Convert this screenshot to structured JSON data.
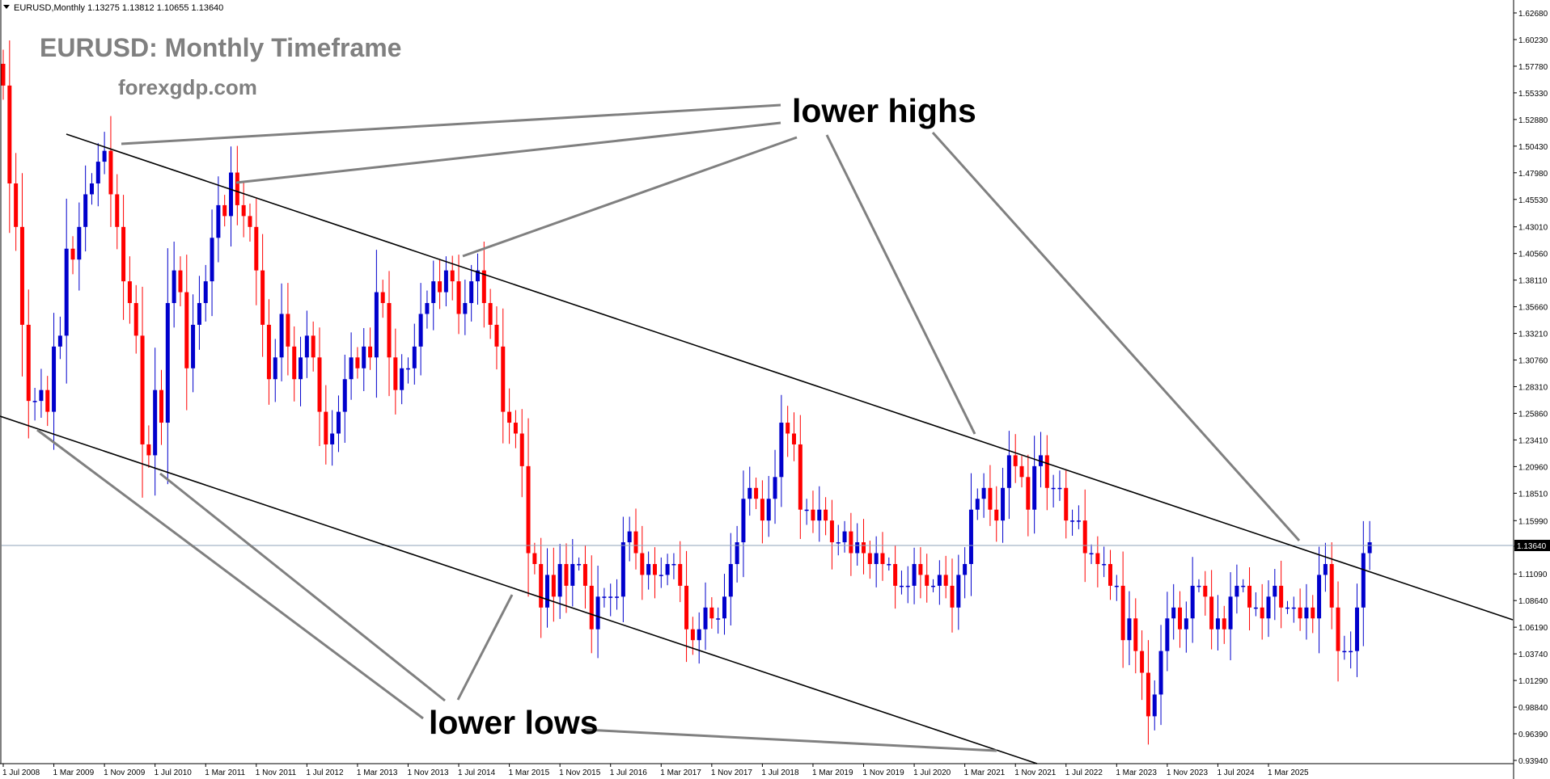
{
  "header": {
    "symbol_line": "EURUSD,Monthly  1.13275 1.13812 1.10655 1.13640"
  },
  "overlay": {
    "title": "EURUSD: Monthly Timeframe",
    "site": "forexgdp.com",
    "label_highs": "lower highs",
    "label_lows": "lower lows"
  },
  "colors": {
    "background": "#ffffff",
    "bull": "#0000cc",
    "bear": "#ff0000",
    "trendline": "#000000",
    "annotation_line": "#808080",
    "current_price_line": "#8fa3b8",
    "current_price_box": "#000000"
  },
  "chart_data": {
    "type": "candlestick",
    "symbol": "EURUSD",
    "timeframe": "Monthly",
    "current_price": "1.13640",
    "y_ticks": [
      "1.62680",
      "1.60230",
      "1.57780",
      "1.55330",
      "1.52880",
      "1.50430",
      "1.47980",
      "1.45530",
      "1.43010",
      "1.40560",
      "1.38110",
      "1.35660",
      "1.33210",
      "1.30760",
      "1.28310",
      "1.25860",
      "1.23410",
      "1.20960",
      "1.18510",
      "1.15990",
      "1.13640",
      "1.11090",
      "1.08640",
      "1.06190",
      "1.03740",
      "1.01290",
      "0.98840",
      "0.96390",
      "0.93940"
    ],
    "x_ticks": [
      "1 Jul 2008",
      "1 Mar 2009",
      "1 Nov 2009",
      "1 Jul 2010",
      "1 Mar 2011",
      "1 Nov 2011",
      "1 Jul 2012",
      "1 Mar 2013",
      "1 Nov 2013",
      "1 Jul 2014",
      "1 Mar 2015",
      "1 Nov 2015",
      "1 Jul 2016",
      "1 Mar 2017",
      "1 Nov 2017",
      "1 Jul 2018",
      "1 Mar 2019",
      "1 Nov 2019",
      "1 Jul 2020",
      "1 Mar 2021",
      "1 Nov 2021",
      "1 Jul 2022",
      "1 Mar 2023",
      "1 Nov 2023",
      "1 Jul 2024",
      "1 Mar 2025"
    ],
    "ylim": [
      0.9394,
      1.6268
    ],
    "start_month": "2008-07",
    "close": [
      1.56,
      1.47,
      1.43,
      1.34,
      1.27,
      1.27,
      1.28,
      1.26,
      1.32,
      1.33,
      1.41,
      1.4,
      1.43,
      1.46,
      1.47,
      1.49,
      1.5,
      1.46,
      1.43,
      1.38,
      1.36,
      1.33,
      1.23,
      1.22,
      1.28,
      1.25,
      1.36,
      1.39,
      1.37,
      1.3,
      1.34,
      1.36,
      1.38,
      1.42,
      1.45,
      1.44,
      1.48,
      1.45,
      1.44,
      1.43,
      1.39,
      1.34,
      1.29,
      1.31,
      1.35,
      1.32,
      1.29,
      1.31,
      1.33,
      1.31,
      1.26,
      1.23,
      1.24,
      1.26,
      1.29,
      1.31,
      1.3,
      1.32,
      1.31,
      1.37,
      1.36,
      1.31,
      1.28,
      1.3,
      1.3,
      1.32,
      1.35,
      1.36,
      1.38,
      1.37,
      1.39,
      1.38,
      1.35,
      1.36,
      1.38,
      1.39,
      1.36,
      1.34,
      1.32,
      1.26,
      1.25,
      1.24,
      1.21,
      1.13,
      1.12,
      1.08,
      1.11,
      1.09,
      1.12,
      1.1,
      1.12,
      1.12,
      1.1,
      1.06,
      1.09,
      1.09,
      1.09,
      1.09,
      1.14,
      1.15,
      1.13,
      1.11,
      1.12,
      1.11,
      1.11,
      1.12,
      1.12,
      1.1,
      1.06,
      1.05,
      1.06,
      1.08,
      1.07,
      1.07,
      1.09,
      1.12,
      1.14,
      1.18,
      1.19,
      1.18,
      1.16,
      1.18,
      1.2,
      1.25,
      1.24,
      1.23,
      1.17,
      1.17,
      1.16,
      1.17,
      1.16,
      1.14,
      1.14,
      1.15,
      1.13,
      1.14,
      1.13,
      1.12,
      1.13,
      1.12,
      1.12,
      1.1,
      1.1,
      1.1,
      1.12,
      1.11,
      1.1,
      1.1,
      1.11,
      1.1,
      1.08,
      1.11,
      1.12,
      1.17,
      1.18,
      1.19,
      1.17,
      1.16,
      1.19,
      1.22,
      1.21,
      1.2,
      1.17,
      1.21,
      1.22,
      1.19,
      1.19,
      1.19,
      1.16,
      1.16,
      1.16,
      1.13,
      1.13,
      1.12,
      1.12,
      1.1,
      1.1,
      1.05,
      1.07,
      1.04,
      1.02,
      0.98,
      1.0,
      1.04,
      1.07,
      1.08,
      1.06,
      1.07,
      1.1,
      1.1,
      1.09,
      1.06,
      1.07,
      1.06,
      1.09,
      1.1,
      1.1,
      1.08,
      1.08,
      1.07,
      1.09,
      1.1,
      1.08,
      1.08,
      1.08,
      1.07,
      1.08,
      1.07,
      1.11,
      1.12,
      1.08,
      1.04,
      1.04,
      1.04,
      1.08,
      1.13,
      1.14
    ],
    "annotations": [
      "lower highs",
      "lower lows"
    ]
  }
}
